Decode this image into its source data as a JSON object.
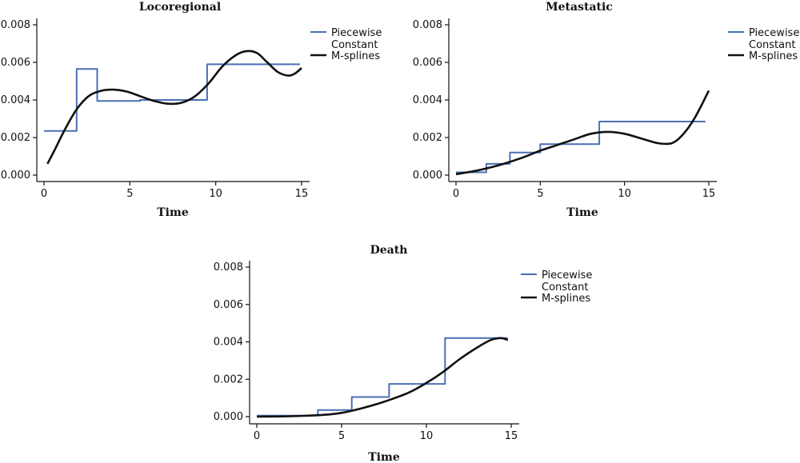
{
  "chart_data": [
    {
      "type": "line",
      "title": "Locoregional",
      "xlabel": "Time",
      "ylabel": "",
      "xlim": [
        0,
        15
      ],
      "ylim": [
        0,
        0.008
      ],
      "xticks": [
        "0",
        "5",
        "10",
        "15"
      ],
      "yticks": [
        "0.000",
        "0.002",
        "0.004",
        "0.006",
        "0.008"
      ],
      "legend": [
        "Piecewise",
        "Constant",
        "M-splines"
      ],
      "legend_position": "top-right",
      "series": [
        {
          "name": "Piecewise Constant",
          "color": "#4a6fb5",
          "step": true,
          "x": [
            0,
            1.9,
            1.9,
            3.1,
            3.1,
            5.6,
            5.6,
            9.5,
            9.5,
            14.9
          ],
          "y": [
            0.00235,
            0.00235,
            0.00565,
            0.00565,
            0.00395,
            0.00395,
            0.004,
            0.004,
            0.0059,
            0.0059
          ]
        },
        {
          "name": "M-splines",
          "color": "#111111",
          "step": false,
          "x": [
            0.2,
            0.6,
            1.2,
            1.9,
            2.6,
            3.3,
            4.0,
            4.8,
            5.6,
            6.4,
            7.2,
            8.0,
            8.8,
            9.6,
            10.4,
            11.2,
            11.8,
            12.4,
            13.0,
            13.6,
            14.2,
            14.6,
            15.0
          ],
          "y": [
            0.0006,
            0.0013,
            0.0024,
            0.0035,
            0.0042,
            0.00448,
            0.00455,
            0.00445,
            0.0042,
            0.00395,
            0.0038,
            0.00385,
            0.0042,
            0.0049,
            0.0058,
            0.0064,
            0.0066,
            0.0065,
            0.006,
            0.0055,
            0.0053,
            0.0054,
            0.0057
          ]
        }
      ]
    },
    {
      "type": "line",
      "title": "Metastatic",
      "xlabel": "Time",
      "ylabel": "",
      "xlim": [
        0,
        15
      ],
      "ylim": [
        0,
        0.008
      ],
      "xticks": [
        "0",
        "5",
        "10",
        "15"
      ],
      "yticks": [
        "0.000",
        "0.002",
        "0.004",
        "0.006",
        "0.008"
      ],
      "legend": [
        "Piecewise",
        "Constant",
        "M-splines"
      ],
      "legend_position": "top-right",
      "series": [
        {
          "name": "Piecewise Constant",
          "color": "#4a6fb5",
          "step": true,
          "x": [
            0,
            1.8,
            1.8,
            3.2,
            3.2,
            5.0,
            5.0,
            8.5,
            8.5,
            14.8
          ],
          "y": [
            0.00015,
            0.00015,
            0.0006,
            0.0006,
            0.0012,
            0.0012,
            0.00165,
            0.00165,
            0.00285,
            0.00285
          ]
        },
        {
          "name": "M-splines",
          "color": "#111111",
          "step": false,
          "x": [
            0,
            1,
            2,
            3,
            4,
            5,
            6,
            7,
            8,
            9,
            10,
            11,
            12,
            12.8,
            13.4,
            14.0,
            14.5,
            15.0
          ],
          "y": [
            5e-05,
            0.0002,
            0.0004,
            0.00065,
            0.00095,
            0.0013,
            0.0016,
            0.0019,
            0.0022,
            0.0023,
            0.0022,
            0.00195,
            0.0017,
            0.0017,
            0.0021,
            0.0028,
            0.0036,
            0.0045
          ]
        }
      ]
    },
    {
      "type": "line",
      "title": "Death",
      "xlabel": "Time",
      "ylabel": "",
      "xlim": [
        0,
        15
      ],
      "ylim": [
        0,
        0.008
      ],
      "xticks": [
        "0",
        "5",
        "10",
        "15"
      ],
      "yticks": [
        "0.000",
        "0.002",
        "0.004",
        "0.006",
        "0.008"
      ],
      "legend": [
        "Piecewise",
        "Constant",
        "M-splines"
      ],
      "legend_position": "top-right",
      "series": [
        {
          "name": "Piecewise Constant",
          "color": "#4a6fb5",
          "step": true,
          "x": [
            0,
            3.6,
            3.6,
            5.6,
            5.6,
            7.8,
            7.8,
            11.1,
            11.1,
            14.8
          ],
          "y": [
            5e-05,
            5e-05,
            0.00035,
            0.00035,
            0.00105,
            0.00105,
            0.00175,
            0.00175,
            0.0042,
            0.0042
          ]
        },
        {
          "name": "M-splines",
          "color": "#111111",
          "step": false,
          "x": [
            0,
            2,
            4,
            5,
            6,
            7,
            8,
            9,
            10,
            11,
            12,
            13,
            13.8,
            14.4,
            14.8
          ],
          "y": [
            0,
            2e-05,
            0.0001,
            0.0002,
            0.0004,
            0.00065,
            0.00095,
            0.0013,
            0.0018,
            0.0024,
            0.0031,
            0.0037,
            0.0041,
            0.0042,
            0.0041
          ]
        }
      ]
    }
  ]
}
